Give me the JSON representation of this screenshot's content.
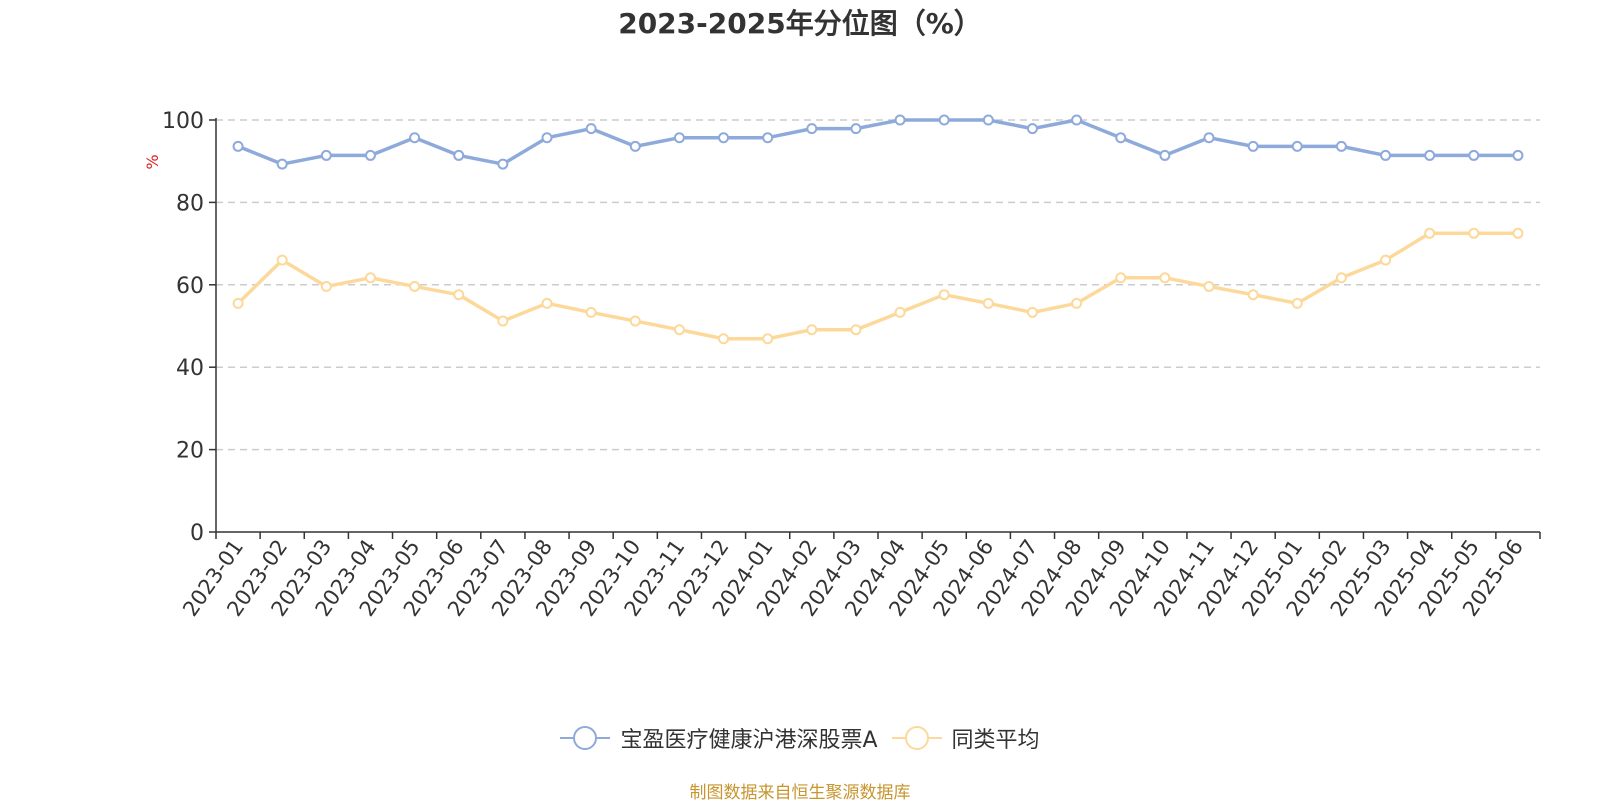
{
  "title": "2023-2025年分位图（%）",
  "source_note": "制图数据来自恒生聚源数据库",
  "colors": {
    "series1": "#8eaadb",
    "series2": "#fcd99a",
    "grid": "#cccccc",
    "axis": "#333333",
    "ylabel": "#e02020",
    "source": "#c8952e"
  },
  "chart_data": {
    "type": "line",
    "title": "2023-2025年分位图（%）",
    "xlabel": "",
    "ylabel": "%",
    "ylim": [
      0,
      100
    ],
    "yticks": [
      "0",
      "20",
      "40",
      "60",
      "80",
      "100"
    ],
    "grid": true,
    "legend_position": "bottom",
    "x": [
      "2023-01",
      "2023-02",
      "2023-03",
      "2023-04",
      "2023-05",
      "2023-06",
      "2023-07",
      "2023-08",
      "2023-09",
      "2023-10",
      "2023-11",
      "2023-12",
      "2024-01",
      "2024-02",
      "2024-03",
      "2024-04",
      "2024-05",
      "2024-06",
      "2024-07",
      "2024-08",
      "2024-09",
      "2024-10",
      "2024-11",
      "2024-12",
      "2025-01",
      "2025-02",
      "2025-03",
      "2025-04",
      "2025-05",
      "2025-06"
    ],
    "series": [
      {
        "name": "宝盈医疗健康沪港深股票A",
        "values": [
          93.6,
          89.3,
          91.4,
          91.4,
          95.7,
          91.4,
          89.3,
          95.7,
          97.9,
          93.6,
          95.7,
          95.7,
          95.7,
          97.9,
          97.9,
          100,
          100,
          100,
          97.9,
          100,
          95.7,
          91.4,
          95.7,
          93.6,
          93.6,
          93.6,
          91.4,
          91.4,
          91.4,
          91.4
        ]
      },
      {
        "name": "同类平均",
        "values": [
          55.5,
          66.0,
          59.6,
          61.7,
          59.6,
          57.6,
          51.2,
          55.5,
          53.3,
          51.2,
          49.1,
          46.9,
          46.9,
          49.1,
          49.1,
          53.3,
          57.6,
          55.5,
          53.3,
          55.5,
          61.7,
          61.7,
          59.6,
          57.6,
          55.5,
          61.7,
          66.0,
          72.5,
          72.5,
          72.5
        ]
      }
    ]
  }
}
